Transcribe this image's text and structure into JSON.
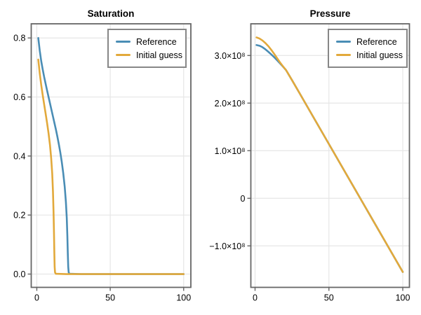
{
  "figure": {
    "background": "#ffffff",
    "frame_color": "#666666",
    "grid_color": "#e6e6e6",
    "tick_color": "#666666",
    "text_color": "#000000",
    "legend_border_color": "#878787",
    "legend_background": "#ffffff"
  },
  "chart_data": [
    {
      "type": "line",
      "title": "Saturation",
      "xlabel": "",
      "ylabel": "",
      "grid": true,
      "legend_position": "top-right",
      "xlim": [
        -3.8,
        104.9
      ],
      "ylim": [
        -0.045,
        0.848
      ],
      "xticks": [
        {
          "value": 0,
          "label": "0"
        },
        {
          "value": 50,
          "label": "50"
        },
        {
          "value": 100,
          "label": "100"
        }
      ],
      "yticks": [
        {
          "value": 0.0,
          "label": "0.0"
        },
        {
          "value": 0.2,
          "label": "0.2"
        },
        {
          "value": 0.4,
          "label": "0.4"
        },
        {
          "value": 0.6,
          "label": "0.6"
        },
        {
          "value": 0.8,
          "label": "0.8"
        }
      ],
      "series": [
        {
          "name": "Reference",
          "color": "#4A8DB5",
          "points": [
            [
              1,
              0.8
            ],
            [
              2,
              0.757
            ],
            [
              3,
              0.722
            ],
            [
              4,
              0.694
            ],
            [
              5,
              0.668
            ],
            [
              6,
              0.645
            ],
            [
              7,
              0.622
            ],
            [
              8,
              0.6
            ],
            [
              9,
              0.578
            ],
            [
              10,
              0.556
            ],
            [
              11,
              0.534
            ],
            [
              12,
              0.512
            ],
            [
              13,
              0.49
            ],
            [
              14,
              0.466
            ],
            [
              15,
              0.44
            ],
            [
              16,
              0.412
            ],
            [
              17,
              0.38
            ],
            [
              18,
              0.342
            ],
            [
              19,
              0.296
            ],
            [
              19.8,
              0.245
            ],
            [
              20.4,
              0.19
            ],
            [
              20.8,
              0.13
            ],
            [
              21.1,
              0.072
            ],
            [
              21.4,
              0.025
            ],
            [
              21.7,
              0.006
            ],
            [
              22.2,
              0.001
            ],
            [
              30,
              0.0
            ],
            [
              100,
              0.0
            ]
          ]
        },
        {
          "name": "Initial guess",
          "color": "#E2A93B",
          "points": [
            [
              1,
              0.727
            ],
            [
              2,
              0.68
            ],
            [
              3,
              0.641
            ],
            [
              4,
              0.607
            ],
            [
              5,
              0.575
            ],
            [
              6,
              0.544
            ],
            [
              7,
              0.512
            ],
            [
              8,
              0.477
            ],
            [
              9,
              0.436
            ],
            [
              9.8,
              0.392
            ],
            [
              10.5,
              0.34
            ],
            [
              11.0,
              0.28
            ],
            [
              11.4,
              0.21
            ],
            [
              11.7,
              0.14
            ],
            [
              11.95,
              0.07
            ],
            [
              12.15,
              0.025
            ],
            [
              12.4,
              0.006
            ],
            [
              12.9,
              0.001
            ],
            [
              20,
              0.0
            ],
            [
              100,
              0.0
            ]
          ]
        }
      ]
    },
    {
      "type": "line",
      "title": "Pressure",
      "xlabel": "",
      "ylabel": "",
      "grid": true,
      "legend_position": "top-right",
      "xlim": [
        -2.85,
        104.5
      ],
      "ylim": [
        -187100000,
        366600000
      ],
      "xticks": [
        {
          "value": 0,
          "label": "0"
        },
        {
          "value": 50,
          "label": "50"
        },
        {
          "value": 100,
          "label": "100"
        }
      ],
      "yticks": [
        {
          "value": -100000000,
          "label": "−1.0×10⁸"
        },
        {
          "value": 0,
          "label": "0"
        },
        {
          "value": 100000000,
          "label": "1.0×10⁸"
        },
        {
          "value": 200000000,
          "label": "2.0×10⁸"
        },
        {
          "value": 300000000,
          "label": "3.0×10⁸"
        }
      ],
      "series": [
        {
          "name": "Reference",
          "color": "#4A8DB5",
          "points": [
            [
              1,
              322000000.0
            ],
            [
              3,
              320500000.0
            ],
            [
              5,
              317500000.0
            ],
            [
              7,
              313000000.0
            ],
            [
              9,
              307800000.0
            ],
            [
              11,
              302200000.0
            ],
            [
              13,
              296200000.0
            ],
            [
              15,
              289800000.0
            ],
            [
              17,
              283200000.0
            ],
            [
              19,
              276300000.0
            ],
            [
              21,
              269200000.0
            ],
            [
              25,
              248300000.0
            ],
            [
              30,
              221500000.0
            ],
            [
              40,
              167700000.0
            ],
            [
              50,
              114000000.0
            ],
            [
              60,
              60200000.0
            ],
            [
              70,
              6500000.0
            ],
            [
              80,
              -47300000.0
            ],
            [
              90,
              -101100000.0
            ],
            [
              100,
              -154800000.0
            ]
          ]
        },
        {
          "name": "Initial guess",
          "color": "#E2A93B",
          "points": [
            [
              1,
              338000000.0
            ],
            [
              3,
              335600000.0
            ],
            [
              5,
              331600000.0
            ],
            [
              7,
              326200000.0
            ],
            [
              9,
              319600000.0
            ],
            [
              11,
              311800000.0
            ],
            [
              13,
              303200000.0
            ],
            [
              15,
              294000000.0
            ],
            [
              17,
              285000000.0
            ],
            [
              19,
              276800000.0
            ],
            [
              21,
              269200000.0
            ],
            [
              25,
              248300000.0
            ],
            [
              30,
              221500000.0
            ],
            [
              50,
              114000000.0
            ],
            [
              70,
              6500000.0
            ],
            [
              100,
              -154800000.0
            ]
          ]
        }
      ]
    }
  ]
}
